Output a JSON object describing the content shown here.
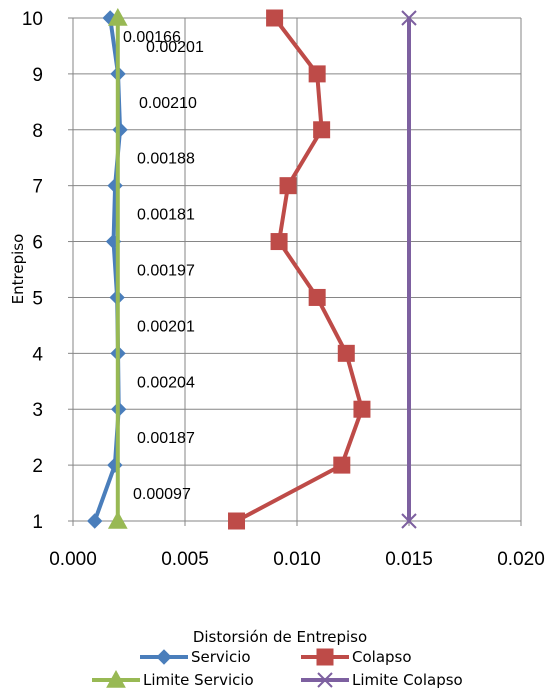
{
  "chart_data": {
    "type": "line",
    "title": "",
    "xlabel": "Distorsión de Entrepiso",
    "ylabel": "Entrepiso",
    "xlim": [
      0,
      0.02
    ],
    "ylim": [
      1,
      10
    ],
    "x_ticks": [
      "0.000",
      "0.005",
      "0.010",
      "0.015",
      "0.020"
    ],
    "y_ticks": [
      "1",
      "2",
      "3",
      "4",
      "5",
      "6",
      "7",
      "8",
      "9",
      "10"
    ],
    "grid": true,
    "legend_position": "bottom",
    "series": [
      {
        "name": "Servicio",
        "color": "#4a7ebb",
        "marker": "diamond",
        "points": [
          {
            "x": 0.00097,
            "y": 1
          },
          {
            "x": 0.00187,
            "y": 2
          },
          {
            "x": 0.00204,
            "y": 3
          },
          {
            "x": 0.00201,
            "y": 4
          },
          {
            "x": 0.00197,
            "y": 5
          },
          {
            "x": 0.00181,
            "y": 6
          },
          {
            "x": 0.00188,
            "y": 7
          },
          {
            "x": 0.0021,
            "y": 8
          },
          {
            "x": 0.00201,
            "y": 9
          },
          {
            "x": 0.00166,
            "y": 10
          }
        ]
      },
      {
        "name": "Colapso",
        "color": "#be4b48",
        "marker": "square",
        "points": [
          {
            "x": 0.0073,
            "y": 1
          },
          {
            "x": 0.012,
            "y": 2
          },
          {
            "x": 0.0129,
            "y": 3
          },
          {
            "x": 0.0122,
            "y": 4
          },
          {
            "x": 0.0109,
            "y": 5
          },
          {
            "x": 0.0092,
            "y": 6
          },
          {
            "x": 0.0096,
            "y": 7
          },
          {
            "x": 0.0111,
            "y": 8
          },
          {
            "x": 0.0109,
            "y": 9
          },
          {
            "x": 0.009,
            "y": 10
          }
        ]
      },
      {
        "name": "Limite Servicio",
        "color": "#98b954",
        "marker": "triangle",
        "points": [
          {
            "x": 0.002,
            "y": 1
          },
          {
            "x": 0.002,
            "y": 10
          }
        ]
      },
      {
        "name": "Limite Colapso",
        "color": "#7d60a0",
        "marker": "x",
        "points": [
          {
            "x": 0.015,
            "y": 1
          },
          {
            "x": 0.015,
            "y": 10
          }
        ]
      }
    ],
    "annotations": [
      {
        "text": "0.00097",
        "level": 1.5
      },
      {
        "text": "0.00187",
        "level": 2.5
      },
      {
        "text": "0.00204",
        "level": 3.5
      },
      {
        "text": "0.00201",
        "level": 4.5
      },
      {
        "text": "0.00197",
        "level": 5.5
      },
      {
        "text": "0.00181",
        "level": 6.5
      },
      {
        "text": "0.00188",
        "level": 7.5
      },
      {
        "text": "0.00210",
        "level": 8.5
      },
      {
        "text": "0.00201",
        "level": 9.5
      },
      {
        "text": "0.00166",
        "level": 10.0
      }
    ]
  }
}
